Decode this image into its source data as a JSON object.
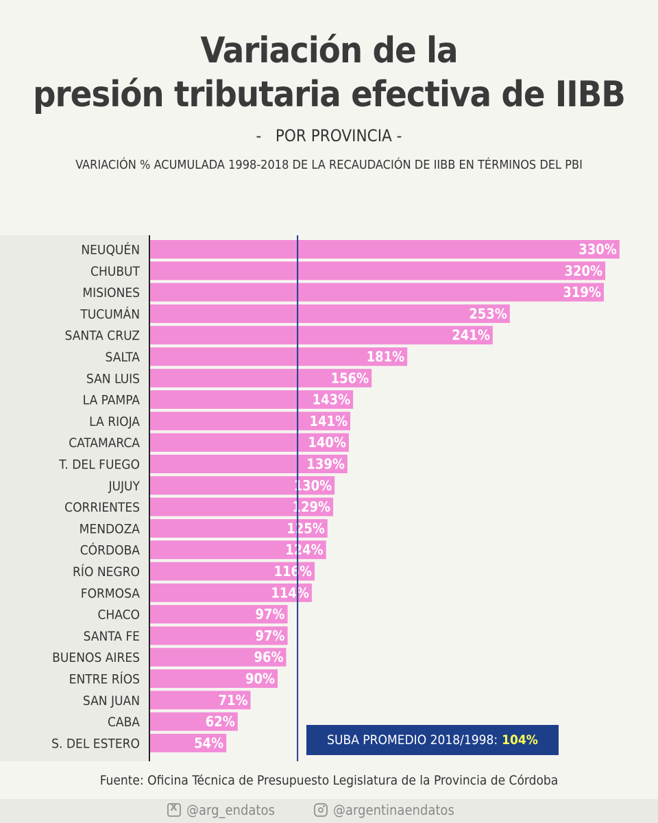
{
  "title": {
    "line1": "Variación de la",
    "line2": "presión tributaria efectiva de IIBB"
  },
  "subtitle": "-   POR PROVINCIA -",
  "description": "VARIACIÓN % ACUMULADA 1998-2018 DE LA RECAUDACIÓN DE IIBB EN TÉRMINOS DEL PBI",
  "average": {
    "label": "SUBA PROMEDIO 2018/1998:",
    "value_text": "104%",
    "value": 104
  },
  "source": "Fuente: Oficina Técnica de Presupuesto Legislatura de la Provincia de Córdoba",
  "footer": {
    "x_handle": "@arg_endatos",
    "instagram_handle": "@argentinaendatos",
    "x_icon": "x-logo-icon",
    "instagram_icon": "instagram-icon"
  },
  "colors": {
    "bar": "#f28cd6",
    "avg_line": "#1d3f8a",
    "avg_box": "#1d3f8a",
    "avg_value": "#ffff55",
    "bar_label": "#ffffff"
  },
  "chart_data": {
    "type": "bar",
    "orientation": "horizontal",
    "categories": [
      "NEUQUÉN",
      "CHUBUT",
      "MISIONES",
      "TUCUMÁN",
      "SANTA CRUZ",
      "SALTA",
      "SAN LUIS",
      "LA PAMPA",
      "LA RIOJA",
      "CATAMARCA",
      "T. DEL FUEGO",
      "JUJUY",
      "CORRIENTES",
      "MENDOZA",
      "CÓRDOBA",
      "RÍO NEGRO",
      "FORMOSA",
      "CHACO",
      "SANTA FE",
      "BUENOS AIRES",
      "ENTRE RÍOS",
      "SAN JUAN",
      "CABA",
      "S. DEL ESTERO"
    ],
    "values": [
      330,
      320,
      319,
      253,
      241,
      181,
      156,
      143,
      141,
      140,
      139,
      130,
      129,
      125,
      124,
      116,
      114,
      97,
      97,
      96,
      90,
      71,
      62,
      54
    ],
    "labels": [
      "330%",
      "320%",
      "319%",
      "253%",
      "241%",
      "181%",
      "156%",
      "143%",
      "141%",
      "140%",
      "139%",
      "130%",
      "129%",
      "125%",
      "124%",
      "116%",
      "114%",
      "97%",
      "97%",
      "96%",
      "90%",
      "71%",
      "62%",
      "54%"
    ],
    "reference_line": 104,
    "xlim": [
      0,
      332
    ]
  }
}
